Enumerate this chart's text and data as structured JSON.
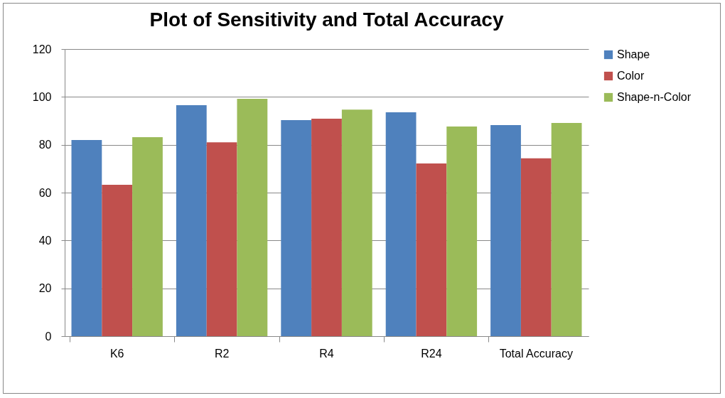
{
  "chart_data": {
    "type": "bar",
    "title": "Plot of Sensitivity and Total Accuracy",
    "categories": [
      "K6",
      "R2",
      "R4",
      "R24",
      "Total Accuracy"
    ],
    "series": [
      {
        "name": "Shape",
        "color": "#4f81bd",
        "values": [
          82,
          96.5,
          90.3,
          93.6,
          88.2
        ]
      },
      {
        "name": "Color",
        "color": "#c0504d",
        "values": [
          63.3,
          81,
          90.9,
          72.2,
          74.3
        ]
      },
      {
        "name": "Shape-n-Color",
        "color": "#9bbb59",
        "values": [
          83.2,
          99.2,
          94.7,
          87.6,
          89.1
        ]
      }
    ],
    "ylim": [
      0,
      120
    ],
    "yticks": [
      0,
      20,
      40,
      60,
      80,
      100,
      120
    ],
    "grid": "y",
    "legend": "right"
  }
}
